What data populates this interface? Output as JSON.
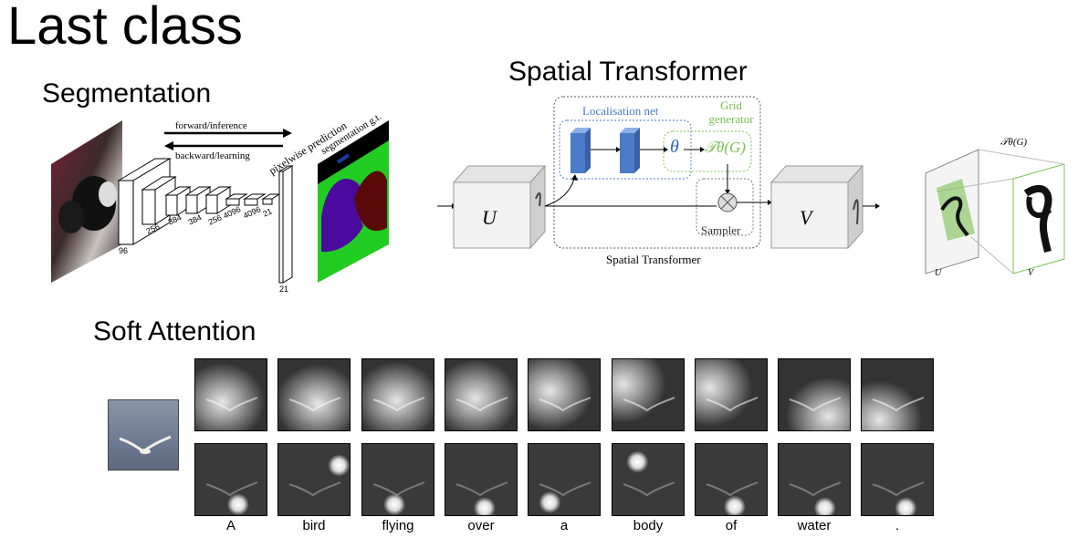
{
  "slide": {
    "title": "Last class"
  },
  "segmentation": {
    "heading": "Segmentation",
    "forward_label": "forward/inference",
    "backward_label": "backward/learning",
    "pred_label": "pixelwise prediction",
    "gt_label": "segmentation g.t.",
    "layer_sizes": [
      "96",
      "256",
      "384",
      "384",
      "256",
      "4096",
      "4096",
      "21"
    ],
    "output_size": "21"
  },
  "spatial_transformer": {
    "heading": "Spatial Transformer",
    "localisation_label": "Localisation net",
    "grid_label_line1": "Grid",
    "grid_label_line2": "generator",
    "sampler_label": "Sampler",
    "module_label": "Spatial Transformer",
    "input_symbol": "U",
    "output_symbol": "V",
    "theta_symbol": "θ",
    "transform_symbol": "𝒯θ(G)",
    "inset_transform_label": "𝒯θ(G)",
    "inset_u": "U",
    "inset_v": "V"
  },
  "soft_attention": {
    "heading": "Soft Attention",
    "words": [
      "A",
      "bird",
      "flying",
      "over",
      "a",
      "body",
      "of",
      "water",
      "."
    ],
    "soft_peaks": [
      [
        0.38,
        0.6
      ],
      [
        0.55,
        0.62
      ],
      [
        0.48,
        0.58
      ],
      [
        0.42,
        0.55
      ],
      [
        0.3,
        0.45
      ],
      [
        0.15,
        0.35
      ],
      [
        0.2,
        0.4
      ],
      [
        0.7,
        0.8
      ],
      [
        0.25,
        0.85
      ]
    ],
    "hard_peaks": [
      [
        0.6,
        0.85
      ],
      [
        0.85,
        0.3
      ],
      [
        0.45,
        0.85
      ],
      [
        0.55,
        0.9
      ],
      [
        0.3,
        0.82
      ],
      [
        0.35,
        0.25
      ],
      [
        0.55,
        0.88
      ],
      [
        0.65,
        0.9
      ],
      [
        0.62,
        0.9
      ]
    ]
  },
  "colors": {
    "localisation_blue": "#4a7bc8",
    "grid_green": "#78c050",
    "seg_green": "#22cc22",
    "seg_purple": "#4b0a9e",
    "seg_maroon": "#5a0808"
  }
}
